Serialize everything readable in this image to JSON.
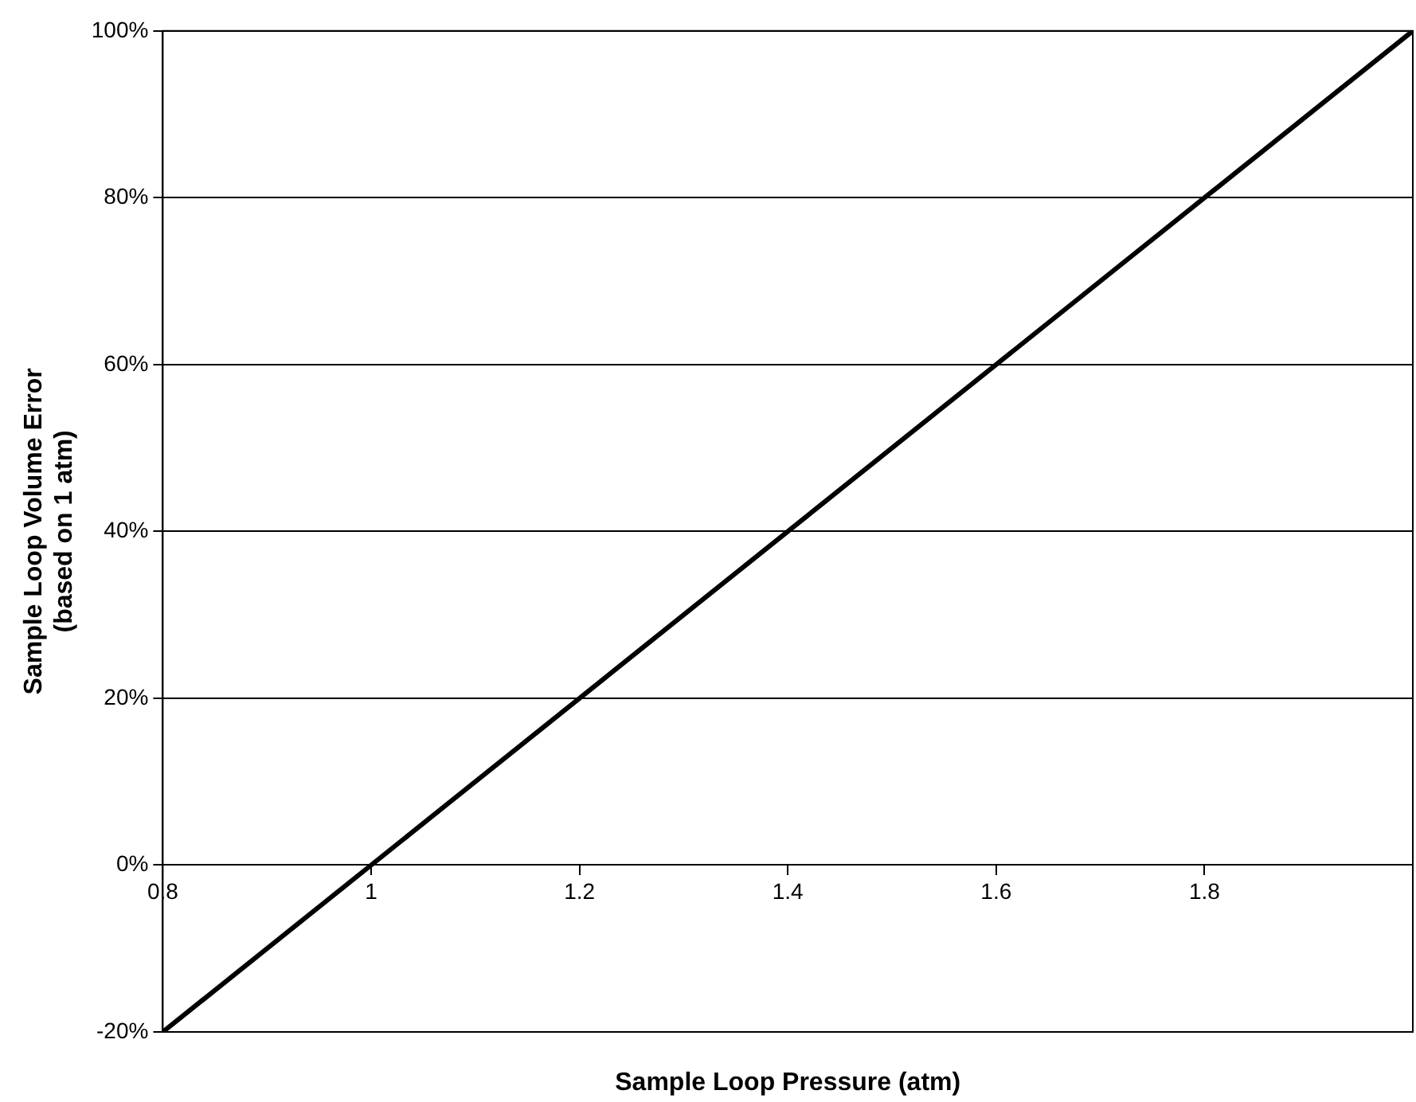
{
  "chart_data": {
    "type": "line",
    "xlabel": "Sample Loop Pressure (atm)",
    "ylabel": "Sample Loop Volume Error\n(based on 1 atm)",
    "x": [
      0.8,
      2.0
    ],
    "series": [
      {
        "color": "#000000",
        "values": [
          -20,
          100
        ]
      }
    ],
    "xlim": [
      0.8,
      2.0
    ],
    "xticks": [
      0.8,
      1,
      1.2,
      1.4,
      1.6,
      1.8
    ],
    "ylim": [
      -20,
      100
    ],
    "yticks": [
      {
        "value": -20,
        "label": "-20%"
      },
      {
        "value": 0,
        "label": "0%"
      },
      {
        "value": 20,
        "label": "20%"
      },
      {
        "value": 40,
        "label": "40%"
      },
      {
        "value": 60,
        "label": "60%"
      },
      {
        "value": 80,
        "label": "80%"
      },
      {
        "value": 100,
        "label": "100%"
      }
    ],
    "grid": "y",
    "legend": false,
    "marker": "none",
    "line_style": "solid"
  }
}
